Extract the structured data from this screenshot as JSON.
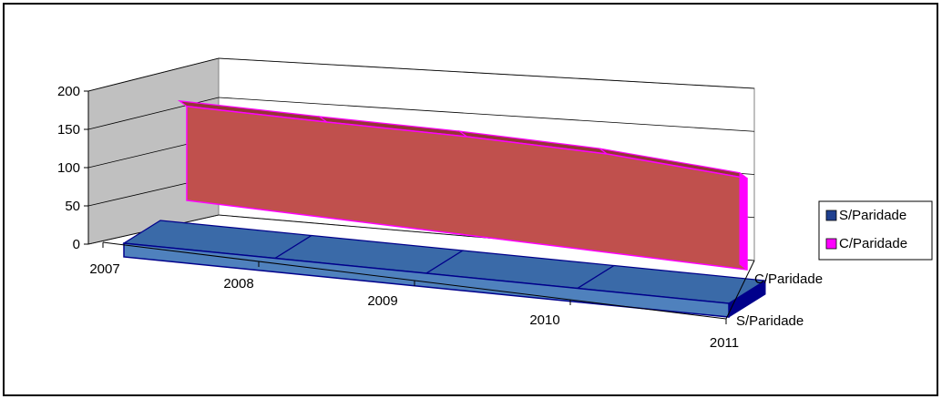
{
  "chart_data": {
    "type": "area",
    "view": "3d",
    "categories": [
      "2007",
      "2008",
      "2009",
      "2010",
      "2011"
    ],
    "series": [
      {
        "name": "S/Paridade",
        "values": [
          10,
          10,
          10,
          10,
          10
        ],
        "color": "#4f81bd",
        "edge": "#00008b",
        "top": "#3a6aa8"
      },
      {
        "name": "C/Paridade",
        "values": [
          175,
          178,
          183,
          183,
          170
        ],
        "color": "#c0504d",
        "edge": "#ff00ff",
        "top": "#943634"
      }
    ],
    "ylim": [
      0,
      200
    ],
    "yticks": [
      "0",
      "50",
      "100",
      "150",
      "200"
    ],
    "series_axis_labels": [
      "S/Paridade",
      "C/Paridade"
    ],
    "legend": {
      "placement": "right",
      "entries": [
        "S/Paridade",
        "C/Paridade"
      ],
      "swatch_colors": [
        "#1f3f8f",
        "#ff00ff"
      ]
    },
    "grid": true,
    "wall_color": "#c0c0c0"
  }
}
